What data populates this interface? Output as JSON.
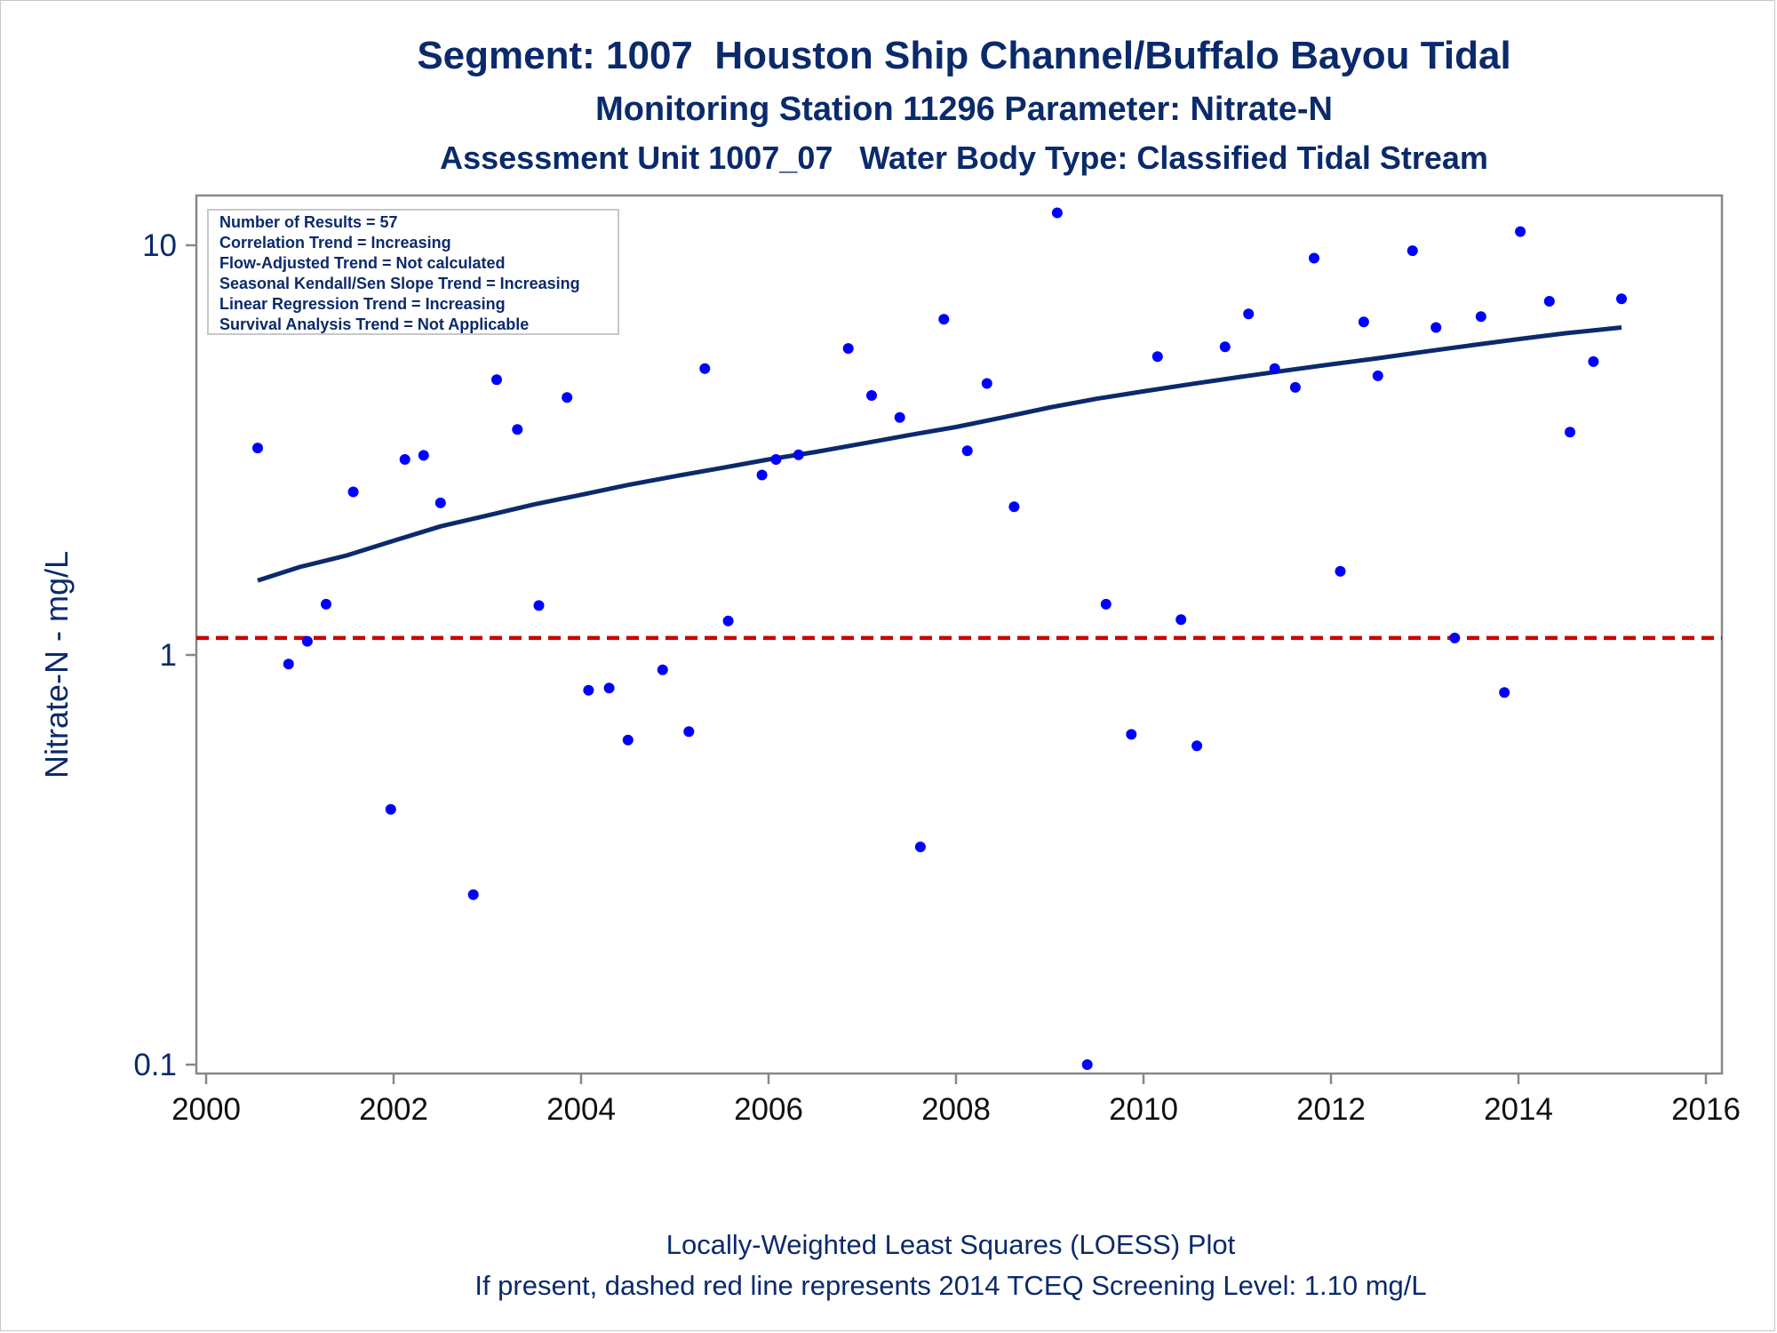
{
  "titles": {
    "line1": "Segment: 1007  Houston Ship Channel/Buffalo Bayou Tidal",
    "line2": "Monitoring Station 11296 Parameter: Nitrate-N",
    "line3": "Assessment Unit 1007_07   Water Body Type: Classified Tidal Stream"
  },
  "footnotes": {
    "line1": "Locally-Weighted Least Squares (LOESS) Plot",
    "line2": "If present, dashed red line represents 2014 TCEQ Screening Level: 1.10 mg/L"
  },
  "info_box": [
    "Number of Results = 57",
    "Correlation Trend = Increasing",
    "Flow-Adjusted Trend = Not calculated",
    "Seasonal Kendall/Sen Slope Trend = Increasing",
    "Linear Regression Trend = Increasing",
    "Survival Analysis Trend = Not Applicable"
  ],
  "colors": {
    "text": "#0b2a6b",
    "points": "#0000ff",
    "loess": "#0b2a6b",
    "screening": "#cc0000",
    "axis": "#888888"
  },
  "chart_data": {
    "type": "scatter",
    "ylabel": "Nitrate-N - mg/L",
    "xlabel": "",
    "xlim": [
      2000,
      2016
    ],
    "ylim": [
      0.1,
      13
    ],
    "y_scale": "log",
    "x_ticks": [
      "2000",
      "2002",
      "2004",
      "2006",
      "2008",
      "2010",
      "2012",
      "2014",
      "2016"
    ],
    "y_ticks": [
      "0.1",
      "1",
      "10"
    ],
    "grid": false,
    "screening_level": 1.1,
    "points": [
      {
        "x": 2000.55,
        "y": 3.2
      },
      {
        "x": 2000.88,
        "y": 0.95
      },
      {
        "x": 2001.08,
        "y": 1.08
      },
      {
        "x": 2001.28,
        "y": 1.33
      },
      {
        "x": 2001.57,
        "y": 2.5
      },
      {
        "x": 2001.97,
        "y": 0.42
      },
      {
        "x": 2002.12,
        "y": 3.0
      },
      {
        "x": 2002.32,
        "y": 3.07
      },
      {
        "x": 2002.5,
        "y": 2.35
      },
      {
        "x": 2002.85,
        "y": 0.26
      },
      {
        "x": 2003.1,
        "y": 4.7
      },
      {
        "x": 2003.32,
        "y": 3.55
      },
      {
        "x": 2003.55,
        "y": 1.32
      },
      {
        "x": 2003.85,
        "y": 4.25
      },
      {
        "x": 2004.08,
        "y": 0.82
      },
      {
        "x": 2004.3,
        "y": 0.83
      },
      {
        "x": 2004.5,
        "y": 0.62
      },
      {
        "x": 2004.87,
        "y": 0.92
      },
      {
        "x": 2005.15,
        "y": 0.65
      },
      {
        "x": 2005.32,
        "y": 5.0
      },
      {
        "x": 2005.57,
        "y": 1.21
      },
      {
        "x": 2005.93,
        "y": 2.75
      },
      {
        "x": 2006.08,
        "y": 3.0
      },
      {
        "x": 2006.32,
        "y": 3.08
      },
      {
        "x": 2006.85,
        "y": 5.6
      },
      {
        "x": 2007.1,
        "y": 4.3
      },
      {
        "x": 2007.4,
        "y": 3.8
      },
      {
        "x": 2007.62,
        "y": 0.34
      },
      {
        "x": 2007.87,
        "y": 6.6
      },
      {
        "x": 2008.12,
        "y": 3.15
      },
      {
        "x": 2008.33,
        "y": 4.6
      },
      {
        "x": 2008.62,
        "y": 2.3
      },
      {
        "x": 2009.08,
        "y": 12.0
      },
      {
        "x": 2009.4,
        "y": 0.1
      },
      {
        "x": 2009.6,
        "y": 1.33
      },
      {
        "x": 2009.87,
        "y": 0.64
      },
      {
        "x": 2010.15,
        "y": 5.35
      },
      {
        "x": 2010.4,
        "y": 1.22
      },
      {
        "x": 2010.57,
        "y": 0.6
      },
      {
        "x": 2010.87,
        "y": 5.65
      },
      {
        "x": 2011.12,
        "y": 6.8
      },
      {
        "x": 2011.4,
        "y": 5.0
      },
      {
        "x": 2011.62,
        "y": 4.5
      },
      {
        "x": 2011.82,
        "y": 9.3
      },
      {
        "x": 2012.1,
        "y": 1.6
      },
      {
        "x": 2012.35,
        "y": 6.5
      },
      {
        "x": 2012.5,
        "y": 4.8
      },
      {
        "x": 2012.87,
        "y": 9.7
      },
      {
        "x": 2013.12,
        "y": 6.3
      },
      {
        "x": 2013.32,
        "y": 1.1
      },
      {
        "x": 2013.6,
        "y": 6.7
      },
      {
        "x": 2013.85,
        "y": 0.81
      },
      {
        "x": 2014.02,
        "y": 10.8
      },
      {
        "x": 2014.33,
        "y": 7.3
      },
      {
        "x": 2014.55,
        "y": 3.5
      },
      {
        "x": 2014.8,
        "y": 5.2
      },
      {
        "x": 2015.1,
        "y": 7.4
      }
    ],
    "loess": [
      {
        "x": 2000.55,
        "y": 1.52
      },
      {
        "x": 2001.0,
        "y": 1.64
      },
      {
        "x": 2001.5,
        "y": 1.75
      },
      {
        "x": 2002.0,
        "y": 1.9
      },
      {
        "x": 2002.5,
        "y": 2.06
      },
      {
        "x": 2003.0,
        "y": 2.19
      },
      {
        "x": 2003.5,
        "y": 2.33
      },
      {
        "x": 2004.0,
        "y": 2.46
      },
      {
        "x": 2004.5,
        "y": 2.6
      },
      {
        "x": 2005.0,
        "y": 2.73
      },
      {
        "x": 2005.5,
        "y": 2.86
      },
      {
        "x": 2006.0,
        "y": 3.0
      },
      {
        "x": 2006.5,
        "y": 3.13
      },
      {
        "x": 2007.0,
        "y": 3.28
      },
      {
        "x": 2007.5,
        "y": 3.44
      },
      {
        "x": 2008.0,
        "y": 3.6
      },
      {
        "x": 2008.5,
        "y": 3.8
      },
      {
        "x": 2009.0,
        "y": 4.02
      },
      {
        "x": 2009.5,
        "y": 4.22
      },
      {
        "x": 2010.0,
        "y": 4.4
      },
      {
        "x": 2010.5,
        "y": 4.58
      },
      {
        "x": 2011.0,
        "y": 4.76
      },
      {
        "x": 2011.5,
        "y": 4.94
      },
      {
        "x": 2012.0,
        "y": 5.12
      },
      {
        "x": 2012.5,
        "y": 5.3
      },
      {
        "x": 2013.0,
        "y": 5.5
      },
      {
        "x": 2013.5,
        "y": 5.7
      },
      {
        "x": 2014.0,
        "y": 5.9
      },
      {
        "x": 2014.5,
        "y": 6.1
      },
      {
        "x": 2015.1,
        "y": 6.3
      }
    ]
  }
}
